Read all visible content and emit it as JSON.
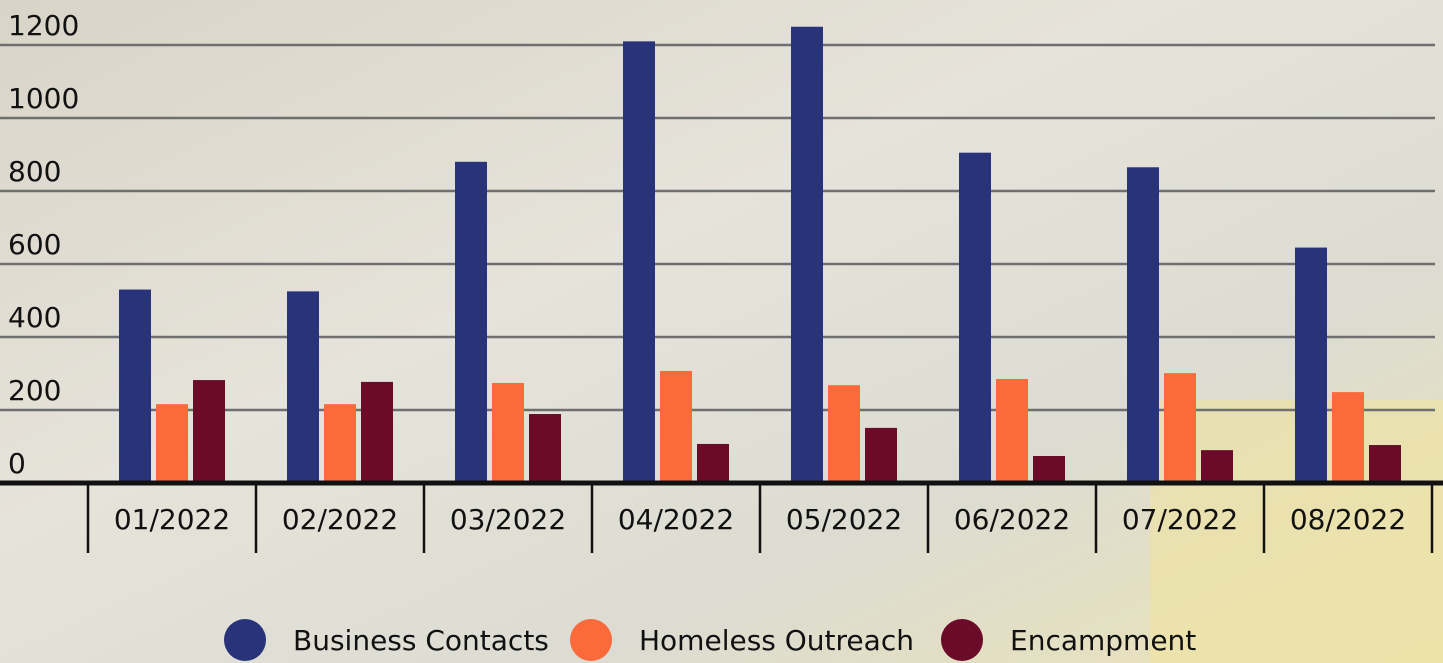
{
  "chart_data": {
    "type": "bar",
    "categories": [
      "01/2022",
      "02/2022",
      "03/2022",
      "04/2022",
      "05/2022",
      "06/2022",
      "07/2022",
      "08/2022"
    ],
    "series": [
      {
        "name": "Business Contacts",
        "color": "#28337a",
        "values": [
          530,
          525,
          880,
          1210,
          1250,
          905,
          865,
          645
        ]
      },
      {
        "name": "Homeless Outreach",
        "color": "#fa6a3a",
        "values": [
          216,
          216,
          274,
          307,
          268,
          285,
          301,
          249
        ]
      },
      {
        "name": "Encampment",
        "color": "#6a0b29",
        "values": [
          282,
          277,
          189,
          107,
          151,
          74,
          90,
          104
        ]
      }
    ],
    "ylim": [
      0,
      1200
    ],
    "yticks": [
      0,
      200,
      400,
      600,
      800,
      1000,
      1200
    ],
    "grid": true
  }
}
